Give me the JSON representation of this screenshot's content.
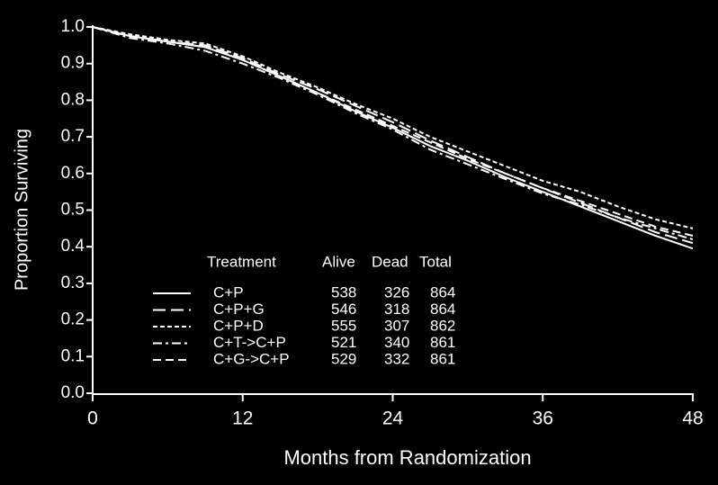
{
  "chart_data": {
    "type": "line",
    "xlabel": "Months from Randomization",
    "ylabel": "Proportion Surviving",
    "x": [
      0,
      3,
      6,
      9,
      12,
      15,
      18,
      21,
      24,
      27,
      30,
      33,
      36,
      39,
      42,
      45,
      48
    ],
    "xlim": [
      0,
      48
    ],
    "xticks": [
      0,
      12,
      24,
      36,
      48
    ],
    "ylim": [
      0,
      1
    ],
    "yticks": [
      {
        "value": 0,
        "label": "0.0"
      },
      0.1,
      0.2,
      0.3,
      0.4,
      0.5,
      0.6,
      0.7,
      0.8,
      0.9,
      {
        "value": 1,
        "label": "1.0"
      }
    ],
    "legend_title": "Treatment",
    "legend_columns": [
      "Alive",
      "Dead",
      "Total"
    ],
    "series": [
      {
        "name": "C+P",
        "color": "#ffffff",
        "dash": "solid",
        "alive": 538,
        "dead": 326,
        "total": 864,
        "values": [
          1.0,
          0.975,
          0.96,
          0.945,
          0.91,
          0.865,
          0.82,
          0.77,
          0.725,
          0.675,
          0.635,
          0.59,
          0.55,
          0.51,
          0.47,
          0.43,
          0.395
        ]
      },
      {
        "name": "C+P+G",
        "color": "#ffffff",
        "dash": "long",
        "alive": 546,
        "dead": 318,
        "total": 864,
        "values": [
          1.0,
          0.975,
          0.96,
          0.95,
          0.915,
          0.87,
          0.83,
          0.785,
          0.74,
          0.69,
          0.645,
          0.6,
          0.56,
          0.52,
          0.48,
          0.44,
          0.41
        ]
      },
      {
        "name": "C+P+D",
        "color": "#ffffff",
        "dash": "short",
        "alive": 555,
        "dead": 307,
        "total": 862,
        "values": [
          1.0,
          0.98,
          0.965,
          0.955,
          0.92,
          0.875,
          0.835,
          0.79,
          0.75,
          0.7,
          0.66,
          0.62,
          0.58,
          0.55,
          0.51,
          0.475,
          0.45
        ]
      },
      {
        "name": "C+T->C+P",
        "color": "#ffffff",
        "dash": "dash-dot",
        "alive": 521,
        "dead": 340,
        "total": 861,
        "values": [
          1.0,
          0.97,
          0.955,
          0.935,
          0.9,
          0.86,
          0.815,
          0.765,
          0.72,
          0.665,
          0.625,
          0.585,
          0.545,
          0.515,
          0.48,
          0.45,
          0.42
        ]
      },
      {
        "name": "C+G->C+P",
        "color": "#ffffff",
        "dash": "medium",
        "alive": 529,
        "dead": 332,
        "total": 861,
        "values": [
          1.0,
          0.975,
          0.96,
          0.945,
          0.91,
          0.865,
          0.82,
          0.775,
          0.73,
          0.685,
          0.64,
          0.6,
          0.56,
          0.525,
          0.49,
          0.455,
          0.43
        ]
      }
    ]
  }
}
